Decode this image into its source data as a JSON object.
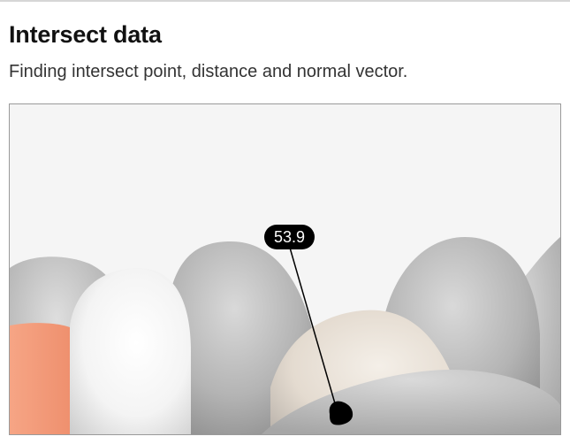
{
  "page": {
    "title": "Intersect data",
    "subtitle": "Finding intersect point, distance and normal vector."
  },
  "viewport": {
    "distance_label": "53.9",
    "background_color": "#f5f5f5",
    "accent_color": "#f49a7a"
  }
}
